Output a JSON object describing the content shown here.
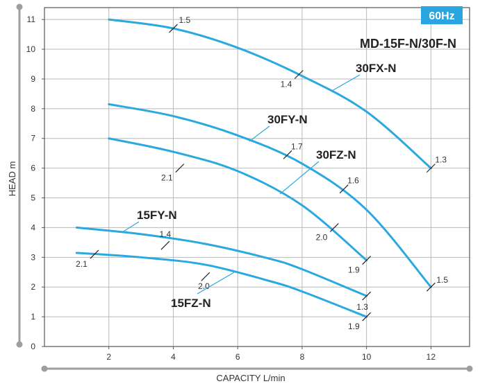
{
  "chart_data": {
    "type": "line",
    "title": "MD-15F-N/30F-N",
    "badge": "60Hz",
    "xlabel": "CAPACITY  L/min",
    "ylabel": "HEAD  m",
    "xlim": [
      0,
      13.2
    ],
    "ylim": [
      0,
      11.4
    ],
    "x_ticks": [
      "2",
      "4",
      "6",
      "8",
      "10",
      "12"
    ],
    "y_ticks": [
      "0",
      "1",
      "2",
      "3",
      "4",
      "5",
      "6",
      "7",
      "8",
      "9",
      "10",
      "11"
    ],
    "grid": true,
    "series": [
      {
        "name": "30FX-N",
        "x": [
          2,
          4,
          6,
          8,
          10,
          12
        ],
        "y": [
          11.0,
          10.7,
          10.05,
          9.1,
          7.9,
          6.0
        ]
      },
      {
        "name": "30FY-N",
        "x": [
          2,
          4,
          6,
          8,
          10,
          12
        ],
        "y": [
          8.15,
          7.75,
          7.1,
          6.15,
          4.6,
          2.0
        ]
      },
      {
        "name": "30FZ-N",
        "x": [
          2,
          4,
          6,
          8,
          10
        ],
        "y": [
          7.0,
          6.55,
          5.9,
          4.75,
          2.9
        ]
      },
      {
        "name": "15FY-N",
        "x": [
          1,
          3,
          5,
          7,
          8,
          10
        ],
        "y": [
          4.0,
          3.78,
          3.45,
          2.95,
          2.6,
          1.7
        ]
      },
      {
        "name": "15FZ-N",
        "x": [
          1,
          3,
          5,
          7,
          8,
          10
        ],
        "y": [
          3.15,
          3.0,
          2.75,
          2.2,
          1.85,
          1.0
        ]
      }
    ],
    "annotations": [
      {
        "text": "1.5",
        "x": 4.0,
        "y": 10.7
      },
      {
        "text": "1.4",
        "x": 7.9,
        "y": 9.15
      },
      {
        "text": "1.3",
        "x": 12.0,
        "y": 6.0
      },
      {
        "text": "1.7",
        "x": 7.55,
        "y": 6.45
      },
      {
        "text": "1.6",
        "x": 9.3,
        "y": 5.3
      },
      {
        "text": "1.5",
        "x": 12.0,
        "y": 2.0
      },
      {
        "text": "2.1",
        "x": 4.2,
        "y": 6.0
      },
      {
        "text": "2.0",
        "x": 9.0,
        "y": 4.0
      },
      {
        "text": "1.9",
        "x": 10.0,
        "y": 2.9
      },
      {
        "text": "1.4",
        "x": 3.75,
        "y": 3.4
      },
      {
        "text": "1.3",
        "x": 10.0,
        "y": 1.7
      },
      {
        "text": "2.1",
        "x": 1.55,
        "y": 3.1
      },
      {
        "text": "2.0",
        "x": 5.0,
        "y": 2.35
      },
      {
        "text": "1.9",
        "x": 10.0,
        "y": 1.0
      }
    ]
  }
}
